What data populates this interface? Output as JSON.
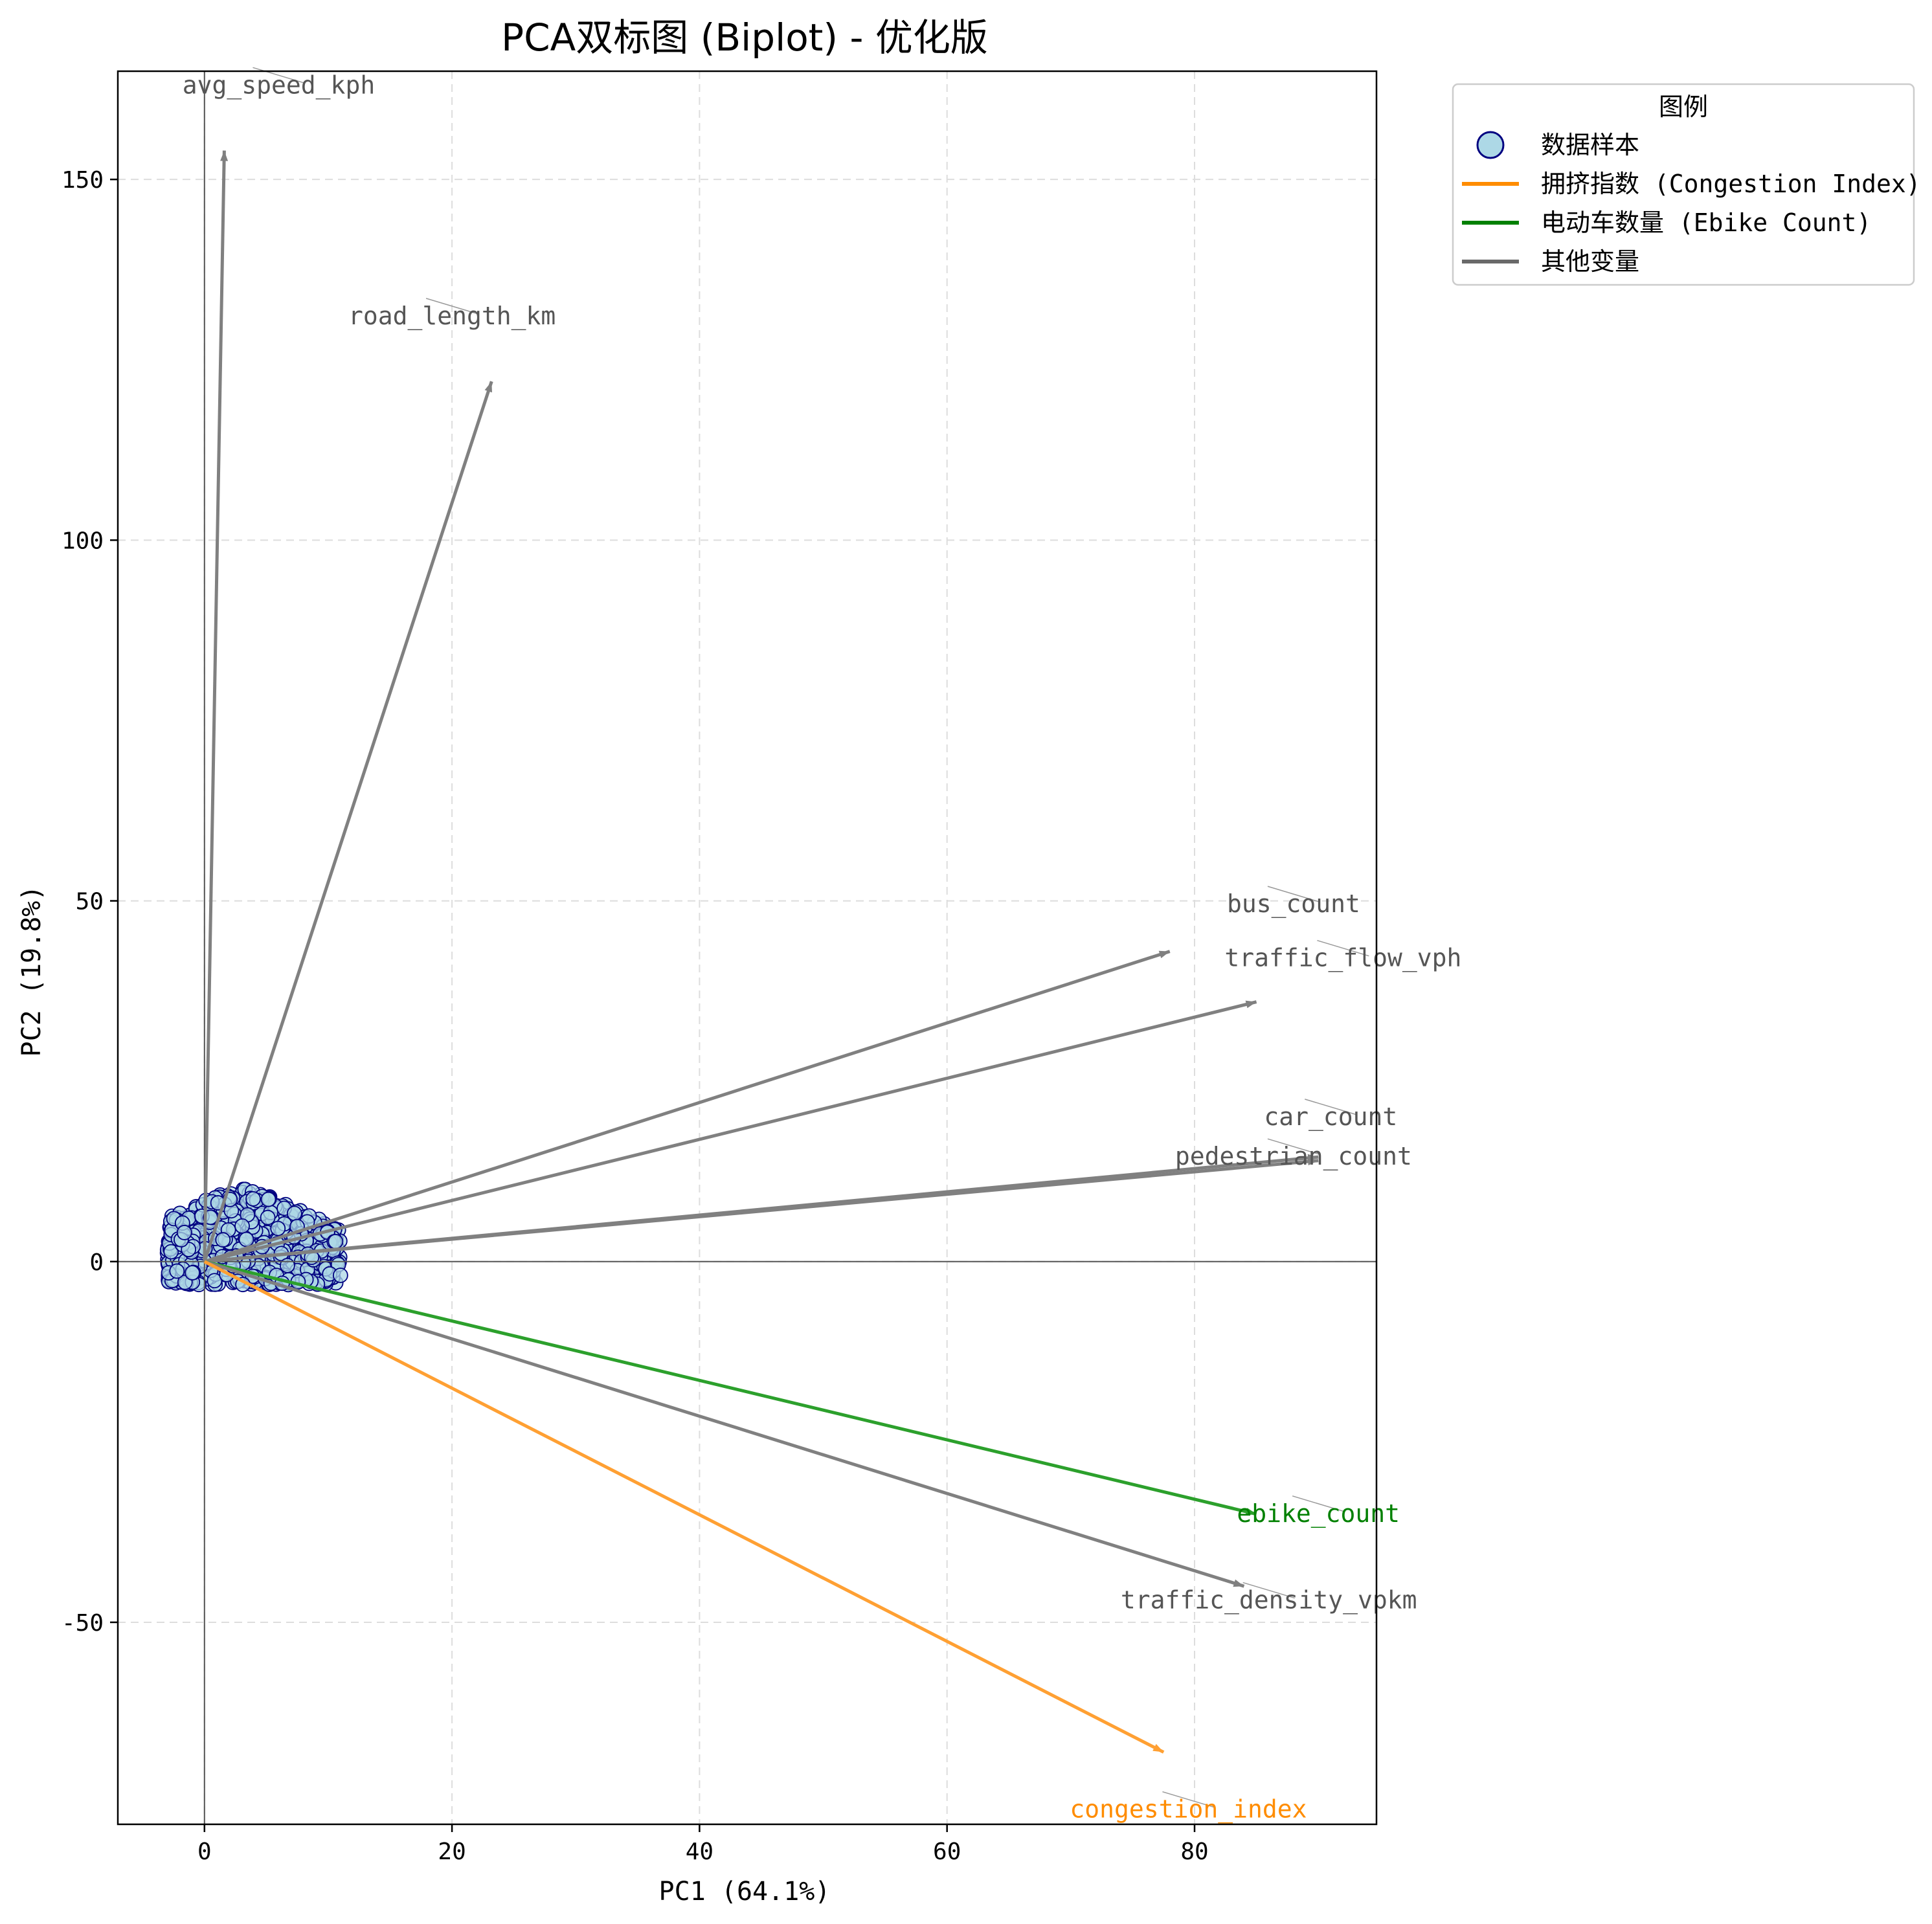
{
  "chart_data": {
    "type": "scatter",
    "title": "PCA双标图 (Biplot) - 优化版",
    "xlabel": "PC1 (64.1%)",
    "ylabel": "PC2 (19.8%)",
    "xlim": [
      -7,
      94.7
    ],
    "ylim": [
      -78,
      165
    ],
    "x_ticks": [
      0,
      20,
      40,
      60,
      80
    ],
    "y_ticks": [
      -50,
      0,
      50,
      100,
      150
    ],
    "grid": true,
    "legend_position": "outside-top-right",
    "legend": {
      "title": "图例",
      "entries": [
        {
          "label": "数据样本",
          "kind": "marker",
          "color": "#add8e6",
          "edge": "#000080"
        },
        {
          "label": "拥挤指数 (Congestion Index)",
          "kind": "line",
          "color": "#ff8c00"
        },
        {
          "label": "电动车数量 (Ebike Count)",
          "kind": "line",
          "color": "#008000"
        },
        {
          "label": "其他变量",
          "kind": "line",
          "color": "#696969"
        }
      ]
    },
    "samples": {
      "name": "数据样本",
      "description_range_x": [
        -3,
        11
      ],
      "description_range_y": [
        -4,
        10
      ]
    },
    "loadings": [
      {
        "name": "avg_speed_kph",
        "x": 1.6,
        "y": 154,
        "label_x": 6,
        "label_y": 163,
        "color": "#808080"
      },
      {
        "name": "road_length_km",
        "x": 23.2,
        "y": 122,
        "label_x": 20,
        "label_y": 131,
        "color": "#808080"
      },
      {
        "name": "bus_count",
        "x": 78,
        "y": 43,
        "label_x": 88,
        "label_y": 49.5,
        "color": "#808080"
      },
      {
        "name": "traffic_flow_vph",
        "x": 85,
        "y": 36,
        "label_x": 92,
        "label_y": 42,
        "color": "#808080"
      },
      {
        "name": "car_count",
        "x": 90,
        "y": 14.5,
        "label_x": 91,
        "label_y": 20,
        "color": "#808080"
      },
      {
        "name": "pedestrian_count",
        "x": 90,
        "y": 14,
        "label_x": 88,
        "label_y": 14.5,
        "color": "#808080"
      },
      {
        "name": "ebike_count",
        "x": 85,
        "y": -35,
        "label_x": 90,
        "label_y": -35,
        "color": "#2ca02c",
        "label_color": "#008000"
      },
      {
        "name": "traffic_density_vpkm",
        "x": 84,
        "y": -45,
        "label_x": 86,
        "label_y": -47,
        "color": "#808080"
      },
      {
        "name": "congestion_index",
        "x": 77.5,
        "y": -68,
        "label_x": 79.5,
        "label_y": -76,
        "color": "#ffa033",
        "label_color": "#ff8c00"
      }
    ]
  }
}
